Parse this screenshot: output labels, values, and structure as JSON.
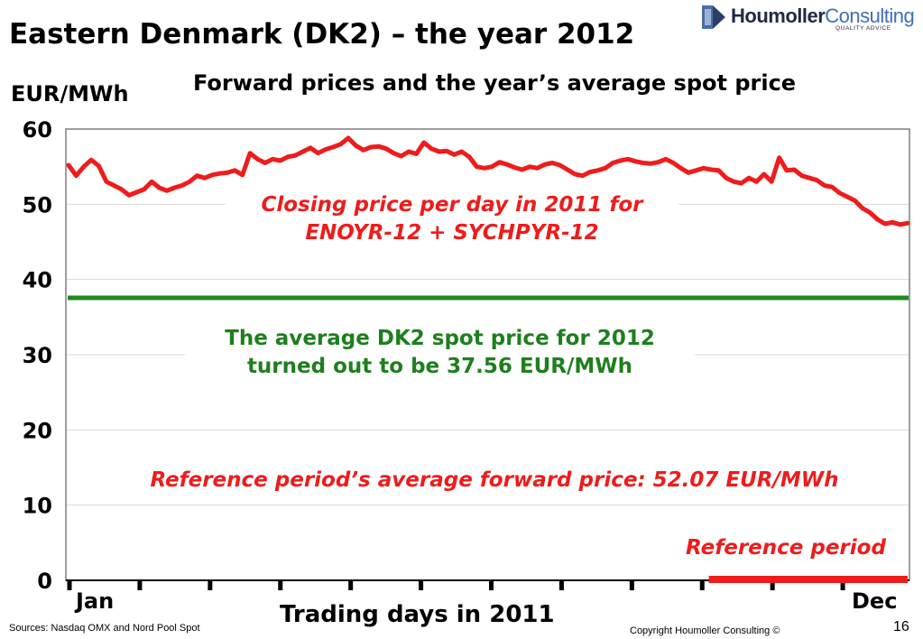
{
  "header": {
    "title": "Eastern Denmark (DK2) – the year 2012",
    "subtitle": "Forward prices and the year’s average spot price"
  },
  "logo": {
    "name_part1": "Houmoller",
    "name_part2": "Consulting",
    "tagline": "QUALITY ADVICE"
  },
  "footer": {
    "sources": "Sources: Nasdaq OMX and Nord Pool Spot",
    "copyright": "Copyright Houmoller Consulting ©",
    "page_number": "16"
  },
  "annotations": {
    "closing_line1": "Closing price per day in 2011 for",
    "closing_line2": "ENOYR-12 + SYCHPYR-12",
    "average_line1": "The average DK2 spot price for 2012",
    "average_line2": "turned out to be 37.56 EUR/MWh",
    "reference_avg": "Reference period’s average forward price:  52.07 EUR/MWh",
    "reference_period": "Reference period"
  },
  "chart_data": {
    "type": "line",
    "title": "Forward prices and the year’s average spot price",
    "ylabel": "EUR/MWh",
    "xlabel": "Trading days in 2011",
    "ylim": [
      0,
      60
    ],
    "yticks": [
      0,
      10,
      20,
      30,
      40,
      50,
      60
    ],
    "x_start_label": "Jan",
    "x_end_label": "Dec",
    "month_ticks": 12,
    "grid": true,
    "series": [
      {
        "name": "Closing price per day in 2011 for ENOYR-12 + SYCHPYR-12",
        "color": "#ee1c1c",
        "values": [
          55.2,
          53.8,
          55.0,
          55.9,
          55.1,
          53.0,
          52.5,
          52.0,
          51.2,
          51.6,
          52.0,
          53.0,
          52.2,
          51.8,
          52.2,
          52.5,
          53.0,
          53.8,
          53.5,
          53.9,
          54.1,
          54.2,
          54.5,
          53.9,
          56.8,
          56.0,
          55.5,
          56.0,
          55.8,
          56.3,
          56.5,
          57.0,
          57.5,
          56.8,
          57.3,
          57.6,
          58.0,
          58.8,
          57.8,
          57.2,
          57.6,
          57.7,
          57.4,
          56.8,
          56.4,
          57.0,
          56.7,
          58.2,
          57.4,
          57.0,
          57.1,
          56.6,
          57.0,
          56.3,
          55.0,
          54.8,
          55.0,
          55.6,
          55.3,
          54.9,
          54.6,
          55.0,
          54.8,
          55.3,
          55.5,
          55.2,
          54.6,
          54.0,
          53.8,
          54.3,
          54.5,
          54.8,
          55.5,
          55.8,
          56.0,
          55.7,
          55.5,
          55.4,
          55.6,
          56.0,
          55.5,
          54.8,
          54.2,
          54.5,
          54.8,
          54.6,
          54.5,
          53.5,
          53.0,
          52.8,
          53.5,
          53.0,
          54.0,
          53.0,
          56.2,
          54.5,
          54.6,
          53.8,
          53.5,
          53.2,
          52.5,
          52.3,
          51.5,
          51.0,
          50.5,
          49.5,
          48.9,
          48.0,
          47.4,
          47.6,
          47.3,
          47.5
        ]
      },
      {
        "name": "The average DK2 spot price for 2012",
        "color": "#1e8a1e",
        "constant": 37.56
      },
      {
        "name": "Reference period",
        "color": "#ee1c1c",
        "span_fraction": [
          0.76,
          1.0
        ],
        "value": 0
      }
    ]
  }
}
